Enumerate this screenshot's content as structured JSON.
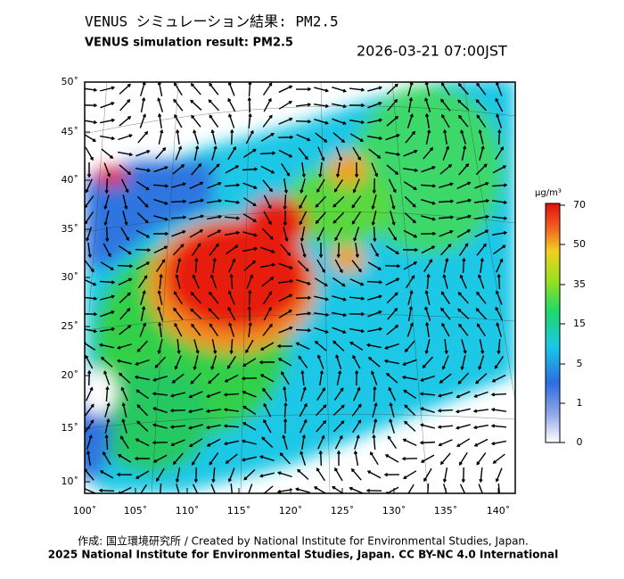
{
  "header": {
    "title": "VENUS シミュレーション結果: PM2.5",
    "subtitle": "VENUS simulation result: PM2.5",
    "timestamp": "2026-03-21 07:00JST"
  },
  "map": {
    "lat_labels": [
      "50˚",
      "45˚",
      "40˚",
      "35˚",
      "30˚",
      "25˚",
      "20˚",
      "15˚",
      "10˚"
    ],
    "lon_labels": [
      "100˚",
      "105˚",
      "110˚",
      "115˚",
      "120˚",
      "125˚",
      "130˚",
      "135˚",
      "140˚"
    ]
  },
  "colorbar": {
    "unit": "μg/m³",
    "labels": [
      "70",
      "50",
      "35",
      "15",
      "5",
      "1",
      "0"
    ]
  },
  "footer": {
    "credit": "作成: 国立環境研究所 / Created by National Institute for Environmental Studies, Japan.",
    "copyright": "2025 National Institute for Environmental Studies, Japan. CC BY-NC 4.0 International"
  }
}
